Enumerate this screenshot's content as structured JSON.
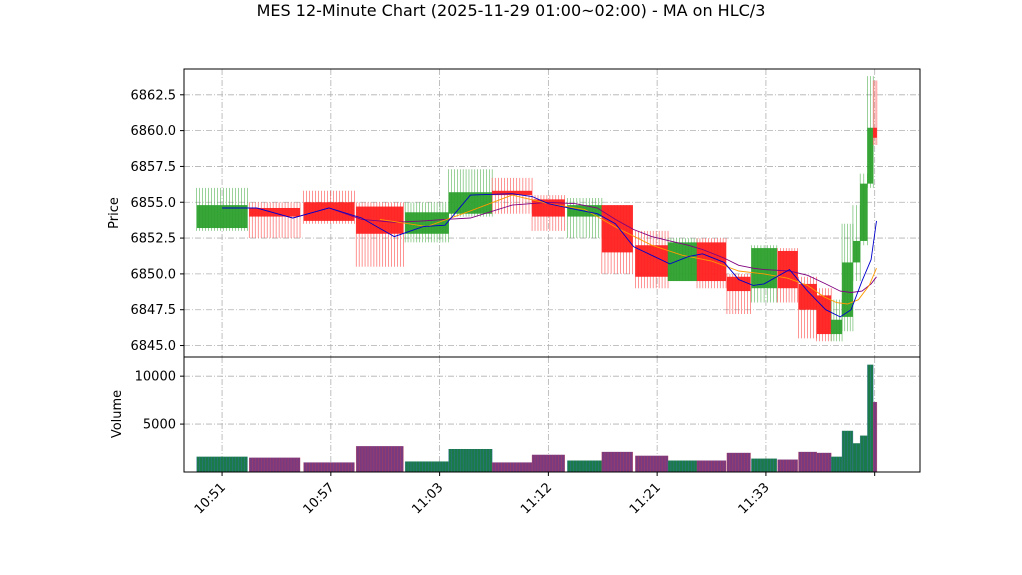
{
  "chart_data": {
    "type": "candlestick",
    "title": "MES 12-Minute Chart (2025-11-29 01:00~02:00) - MA on HLC/3",
    "price_panel": {
      "ylabel": "Price",
      "ylim": [
        6844.2,
        6864.3
      ],
      "yticks": [
        6845.0,
        6847.5,
        6850.0,
        6852.5,
        6855.0,
        6857.5,
        6860.0,
        6862.5
      ],
      "ytick_labels": [
        "6845.0",
        "6847.5",
        "6850.0",
        "6852.5",
        "6855.0",
        "6857.5",
        "6860.0",
        "6862.5"
      ]
    },
    "volume_panel": {
      "ylabel": "Volume",
      "ylim": [
        0,
        12000
      ],
      "yticks": [
        5000,
        10000
      ],
      "ytick_labels": [
        "5000",
        "10000"
      ]
    },
    "xlim": [
      -0.6,
      19.7
    ],
    "xticks": [
      0.45,
      3.45,
      6.45,
      9.45,
      12.45,
      15.45,
      18.45
    ],
    "xtick_labels": [
      "10:51",
      "10:57",
      "11:03",
      "11:12",
      "11:21",
      "11:33",
      ""
    ],
    "grid": true,
    "colors": {
      "up": "#2ca02c",
      "down": "#ff2020",
      "vol_up": "#1a7a4a",
      "vol_down": "#7a3a80",
      "ma_fast": "#0000cc",
      "ma_mid": "#ff9900",
      "ma_slow": "#800080"
    },
    "candles": [
      {
        "x": 0.45,
        "w": 1.4,
        "open": 6853.2,
        "high": 6856.0,
        "low": 6853.0,
        "close": 6854.8,
        "volume": 1600
      },
      {
        "x": 1.9,
        "w": 1.4,
        "open": 6854.6,
        "high": 6855.0,
        "low": 6852.5,
        "close": 6854.0,
        "volume": 1500
      },
      {
        "x": 3.4,
        "w": 1.4,
        "open": 6855.0,
        "high": 6855.8,
        "low": 6853.5,
        "close": 6853.7,
        "volume": 1000
      },
      {
        "x": 4.8,
        "w": 1.3,
        "open": 6854.7,
        "high": 6855.0,
        "low": 6850.5,
        "close": 6852.8,
        "volume": 2700
      },
      {
        "x": 6.1,
        "w": 1.2,
        "open": 6852.8,
        "high": 6855.0,
        "low": 6852.2,
        "close": 6854.3,
        "volume": 1100
      },
      {
        "x": 7.3,
        "w": 1.2,
        "open": 6854.2,
        "high": 6857.3,
        "low": 6854.0,
        "close": 6855.7,
        "volume": 2400
      },
      {
        "x": 8.45,
        "w": 1.1,
        "open": 6855.8,
        "high": 6856.7,
        "low": 6854.2,
        "close": 6855.5,
        "volume": 1000
      },
      {
        "x": 9.45,
        "w": 0.9,
        "open": 6855.2,
        "high": 6855.5,
        "low": 6853.0,
        "close": 6854.0,
        "volume": 1800
      },
      {
        "x": 10.45,
        "w": 0.95,
        "open": 6854.0,
        "high": 6855.3,
        "low": 6852.5,
        "close": 6854.8,
        "volume": 1200
      },
      {
        "x": 11.35,
        "w": 0.85,
        "open": 6854.8,
        "high": 6854.8,
        "low": 6850.0,
        "close": 6851.5,
        "volume": 2100
      },
      {
        "x": 12.3,
        "w": 0.9,
        "open": 6852.0,
        "high": 6853.0,
        "low": 6849.0,
        "close": 6849.8,
        "volume": 1700
      },
      {
        "x": 13.15,
        "w": 0.8,
        "open": 6849.5,
        "high": 6852.5,
        "low": 6849.5,
        "close": 6852.2,
        "volume": 1200
      },
      {
        "x": 13.95,
        "w": 0.8,
        "open": 6852.2,
        "high": 6852.5,
        "low": 6849.0,
        "close": 6849.5,
        "volume": 1200
      },
      {
        "x": 14.7,
        "w": 0.65,
        "open": 6849.8,
        "high": 6850.0,
        "low": 6847.2,
        "close": 6848.8,
        "volume": 2000
      },
      {
        "x": 15.4,
        "w": 0.7,
        "open": 6849.0,
        "high": 6852.0,
        "low": 6848.0,
        "close": 6851.8,
        "volume": 1400
      },
      {
        "x": 16.05,
        "w": 0.55,
        "open": 6851.6,
        "high": 6851.8,
        "low": 6848.0,
        "close": 6849.0,
        "volume": 1300
      },
      {
        "x": 16.6,
        "w": 0.5,
        "open": 6849.3,
        "high": 6849.8,
        "low": 6845.5,
        "close": 6847.5,
        "volume": 2100
      },
      {
        "x": 17.05,
        "w": 0.4,
        "open": 6848.5,
        "high": 6849.0,
        "low": 6845.3,
        "close": 6845.8,
        "volume": 2000
      },
      {
        "x": 17.4,
        "w": 0.3,
        "open": 6845.8,
        "high": 6848.2,
        "low": 6845.3,
        "close": 6846.8,
        "volume": 1600
      },
      {
        "x": 17.7,
        "w": 0.3,
        "open": 6847.0,
        "high": 6853.5,
        "low": 6846.0,
        "close": 6850.8,
        "volume": 4300
      },
      {
        "x": 17.95,
        "w": 0.2,
        "open": 6850.8,
        "high": 6854.8,
        "low": 6849.5,
        "close": 6852.3,
        "volume": 3000
      },
      {
        "x": 18.15,
        "w": 0.2,
        "open": 6852.3,
        "high": 6857.0,
        "low": 6852.0,
        "close": 6856.3,
        "volume": 3800
      },
      {
        "x": 18.33,
        "w": 0.16,
        "open": 6856.3,
        "high": 6863.8,
        "low": 6856.0,
        "close": 6860.2,
        "volume": 11200
      },
      {
        "x": 18.46,
        "w": 0.1,
        "open": 6860.2,
        "high": 6863.5,
        "low": 6859.0,
        "close": 6859.5,
        "volume": 7300
      }
    ],
    "ma_fast": [
      [
        0.45,
        6854.6
      ],
      [
        1.4,
        6854.6
      ],
      [
        2.4,
        6853.9
      ],
      [
        3.4,
        6854.6
      ],
      [
        4.3,
        6853.9
      ],
      [
        5.2,
        6852.6
      ],
      [
        6.0,
        6853.3
      ],
      [
        6.6,
        6853.4
      ],
      [
        7.3,
        6855.5
      ],
      [
        8.45,
        6855.6
      ],
      [
        9.0,
        6855.4
      ],
      [
        9.45,
        6854.9
      ],
      [
        10.2,
        6854.5
      ],
      [
        10.8,
        6854.2
      ],
      [
        11.3,
        6853.5
      ],
      [
        11.8,
        6851.9
      ],
      [
        12.3,
        6851.3
      ],
      [
        12.8,
        6850.7
      ],
      [
        13.3,
        6851.2
      ],
      [
        13.7,
        6851.4
      ],
      [
        14.3,
        6850.8
      ],
      [
        14.7,
        6849.6
      ],
      [
        15.1,
        6849.2
      ],
      [
        15.4,
        6849.3
      ],
      [
        16.1,
        6850.3
      ],
      [
        16.6,
        6848.8
      ],
      [
        17.1,
        6847.5
      ],
      [
        17.5,
        6847.0
      ],
      [
        17.8,
        6847.5
      ],
      [
        18.1,
        6849.5
      ],
      [
        18.35,
        6851.0
      ],
      [
        18.5,
        6853.7
      ]
    ],
    "ma_mid": [
      [
        4.8,
        6853.8
      ],
      [
        6.1,
        6853.3
      ],
      [
        7.3,
        6854.4
      ],
      [
        8.45,
        6855.5
      ],
      [
        9.45,
        6854.9
      ],
      [
        10.45,
        6854.5
      ],
      [
        11.35,
        6853.2
      ],
      [
        12.3,
        6852.0
      ],
      [
        13.15,
        6851.3
      ],
      [
        13.95,
        6850.9
      ],
      [
        14.7,
        6850.2
      ],
      [
        15.4,
        6850.0
      ],
      [
        16.05,
        6849.7
      ],
      [
        16.6,
        6849.2
      ],
      [
        17.05,
        6848.4
      ],
      [
        17.4,
        6848.0
      ],
      [
        17.7,
        6847.9
      ],
      [
        18.0,
        6848.2
      ],
      [
        18.3,
        6849.2
      ],
      [
        18.5,
        6850.4
      ]
    ],
    "ma_slow": [
      [
        0.45,
        6854.6
      ],
      [
        1.4,
        6854.6
      ],
      [
        2.4,
        6853.9
      ],
      [
        3.4,
        6854.6
      ],
      [
        4.3,
        6853.8
      ],
      [
        5.2,
        6853.6
      ],
      [
        6.0,
        6853.7
      ],
      [
        6.6,
        6853.8
      ],
      [
        7.3,
        6853.9
      ],
      [
        8.45,
        6854.8
      ],
      [
        9.45,
        6855.0
      ],
      [
        10.2,
        6854.9
      ],
      [
        10.8,
        6854.6
      ],
      [
        11.3,
        6853.8
      ],
      [
        11.8,
        6853.1
      ],
      [
        12.3,
        6852.6
      ],
      [
        12.8,
        6852.3
      ],
      [
        13.3,
        6852.0
      ],
      [
        13.7,
        6851.7
      ],
      [
        14.3,
        6851.1
      ],
      [
        14.7,
        6850.6
      ],
      [
        15.1,
        6850.4
      ],
      [
        15.4,
        6850.3
      ],
      [
        16.1,
        6850.2
      ],
      [
        16.6,
        6849.9
      ],
      [
        17.1,
        6849.3
      ],
      [
        17.5,
        6848.8
      ],
      [
        17.8,
        6848.7
      ],
      [
        18.1,
        6848.8
      ],
      [
        18.35,
        6849.3
      ],
      [
        18.5,
        6849.8
      ]
    ]
  }
}
